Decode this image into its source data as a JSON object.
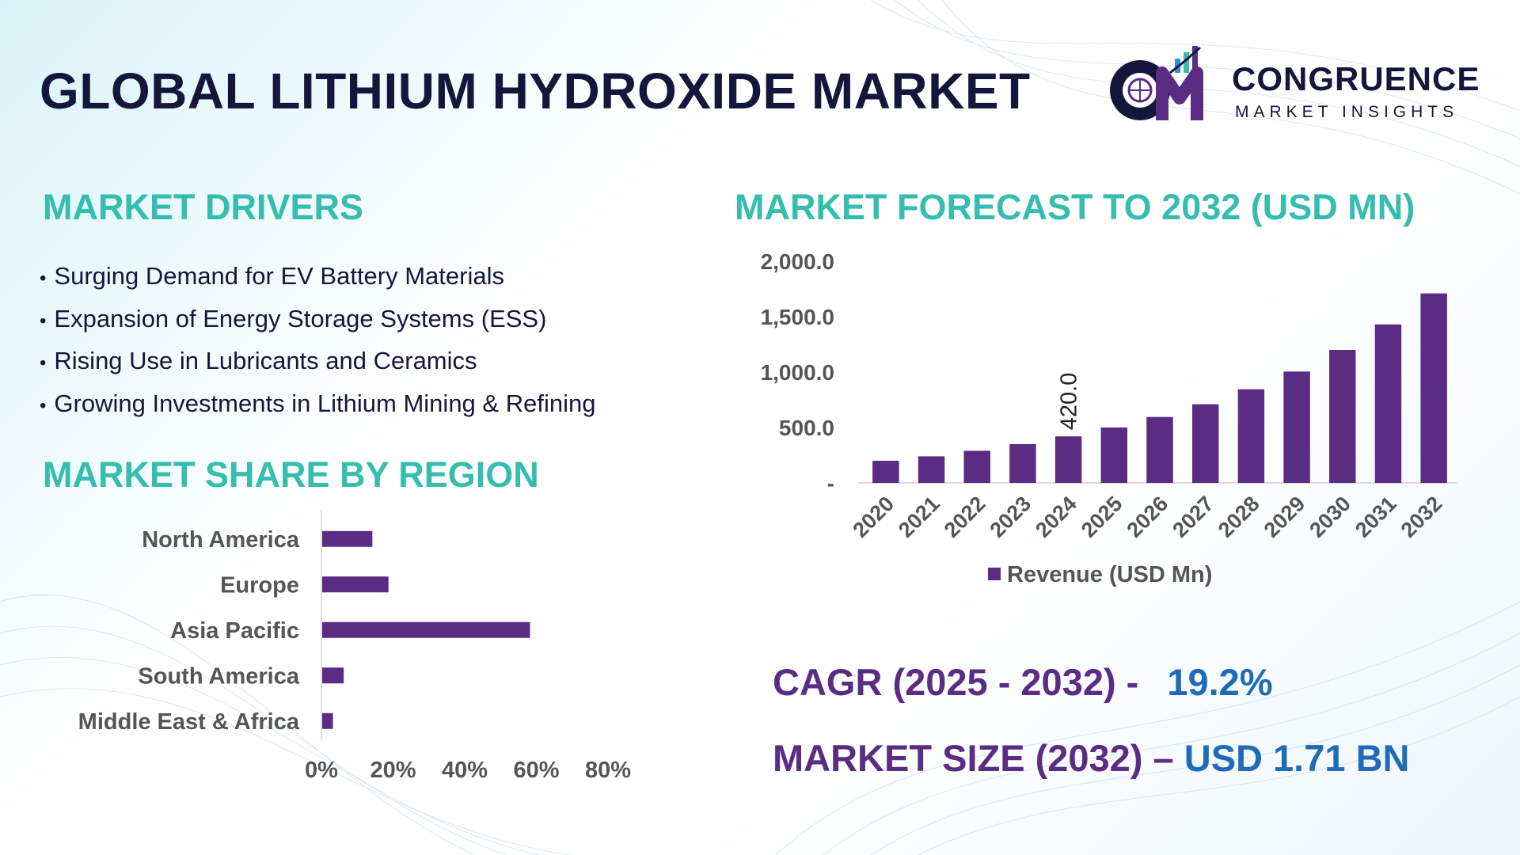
{
  "title": "GLOBAL LITHIUM HYDROXIDE MARKET",
  "logo": {
    "name": "CONGRUENCE",
    "tagline": "MARKET INSIGHTS",
    "mark_letters": "CM"
  },
  "colors": {
    "bar": "#5b2c83",
    "heading": "#35bdb0",
    "title": "#14173b",
    "value": "#1e6bb8"
  },
  "drivers": {
    "heading": "MARKET DRIVERS",
    "items": [
      "Surging Demand for EV Battery Materials",
      "Expansion of Energy Storage Systems (ESS)",
      "Rising Use in Lubricants and Ceramics",
      "Growing Investments in Lithium Mining & Refining"
    ]
  },
  "forecast": {
    "heading": "MARKET FORECAST TO 2032 (USD MN)"
  },
  "region": {
    "heading": "MARKET SHARE BY REGION"
  },
  "kpis": {
    "cagr_label": "CAGR (2025 - 2032) -",
    "cagr_value": "19.2%",
    "size_label": "MARKET SIZE (2032) –",
    "size_value": "USD 1.71 BN"
  },
  "chart_data": [
    {
      "type": "bar",
      "categories": [
        "2020",
        "2021",
        "2022",
        "2023",
        "2024",
        "2025",
        "2026",
        "2027",
        "2028",
        "2029",
        "2030",
        "2031",
        "2032"
      ],
      "series": [
        {
          "name": "Revenue (USD Mn)",
          "values": [
            200,
            240,
            290,
            350,
            420,
            500,
            595,
            710,
            845,
            1005,
            1200,
            1430,
            1710
          ]
        }
      ],
      "data_labels": [
        {
          "category": "2024",
          "text": "420.0"
        }
      ],
      "yticks": [
        "-",
        "500.0",
        "1,000.0",
        "1,500.0",
        "2,000.0"
      ],
      "ylim": [
        0,
        2000
      ],
      "legend": "bottom",
      "grid": false
    },
    {
      "type": "bar",
      "orientation": "horizontal",
      "categories": [
        "North America",
        "Europe",
        "Asia Pacific",
        "South America",
        "Middle East & Africa"
      ],
      "values": [
        14,
        18.5,
        58,
        6,
        3
      ],
      "unit": "%",
      "xticks": [
        "0%",
        "20%",
        "40%",
        "60%",
        "80%"
      ],
      "xlim": [
        0,
        80
      ],
      "grid": false
    }
  ]
}
